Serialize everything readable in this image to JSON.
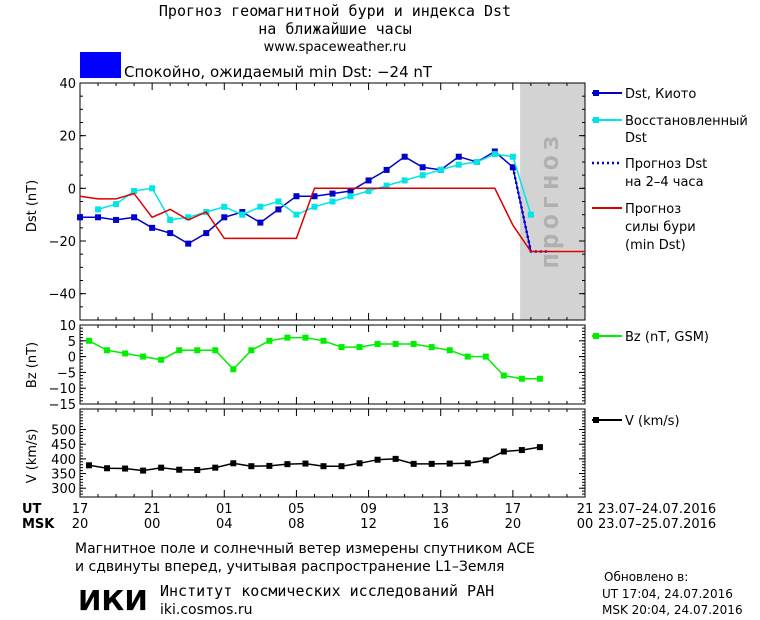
{
  "header": {
    "title_line1": "Прогноз геомагнитной бури и индекса Dst",
    "title_line2": "на ближайшие часы",
    "url": "www.spaceweather.ru"
  },
  "status": {
    "color": "#0000ff",
    "label": "Спокойно, ожидаемый min Dst: −24 nT"
  },
  "panels": {
    "dst": {
      "ylabel": "Dst (nT)",
      "ylim": [
        -50,
        40
      ],
      "ticks": [
        "40",
        "20",
        "0",
        "−20",
        "−40"
      ],
      "forecast_label": "прогноз"
    },
    "bz": {
      "ylabel": "Bz (nT)",
      "ylim": [
        -15,
        10
      ],
      "ticks": [
        "10",
        "5",
        "0",
        "−5",
        "−10",
        "−15"
      ]
    },
    "v": {
      "ylabel": "V (km/s)",
      "ylim": [
        270,
        570
      ],
      "ticks": [
        "500",
        "450",
        "400",
        "350",
        "300"
      ]
    }
  },
  "legend": {
    "dst_kyoto": "Dst, Киото",
    "dst_restored_1": "Восстановленный",
    "dst_restored_2": "Dst",
    "forecast_1": "Прогноз Dst",
    "forecast_2": "на 2–4 часа",
    "storm_1": "Прогноз",
    "storm_2": "силы бури",
    "storm_3": "(min Dst)",
    "bz": "Bz (nT, GSM)",
    "v": "V (km/s)"
  },
  "axis": {
    "ut_label": "UT",
    "msk_label": "MSK",
    "ut_ticks": [
      "17",
      "21",
      "01",
      "05",
      "09",
      "13",
      "17",
      "21"
    ],
    "msk_ticks": [
      "20",
      "00",
      "04",
      "08",
      "12",
      "16",
      "20",
      "00"
    ],
    "ut_range": "23.07–24.07.2016",
    "msk_range": "23.07–25.07.2016"
  },
  "footer": {
    "note_line1": "Магнитное поле и солнечный ветер измерены спутником ACE",
    "note_line2": "и сдвинуты вперед, учитывая распространение L1–Земля",
    "logo": "ИКИ",
    "institute": "Институт космических исследований РАН",
    "site": "iki.cosmos.ru",
    "updated_title": "Обновлено в:",
    "updated_ut": "UT  17:04, 24.07.2016",
    "updated_msk": "MSK 20:04, 24.07.2016"
  },
  "colors": {
    "dst_kyoto": "#0000cc",
    "dst_restored": "#00e5e5",
    "forecast": "#0000cc",
    "storm": "#dd0000",
    "bz": "#00ee00",
    "v": "#000000",
    "forecast_band": "#d3d3d3"
  },
  "chart_data": [
    {
      "type": "line",
      "x_unit": "hours from 17:00 UT 23.07.2016",
      "xlim": [
        0,
        28
      ],
      "ylim": [
        -50,
        40
      ],
      "series": [
        {
          "name": "Dst, Киото",
          "x": [
            0,
            1,
            2,
            3,
            4,
            5,
            6,
            7,
            8,
            9,
            10,
            11,
            12,
            13,
            14,
            15,
            16,
            17,
            18,
            19,
            20,
            21,
            22,
            23,
            24,
            25
          ],
          "y": [
            -11,
            -11,
            -12,
            -11,
            -15,
            -17,
            -21,
            -17,
            -11,
            -9,
            -13,
            -8,
            -3,
            -3,
            -2,
            -1,
            3,
            7,
            12,
            8,
            7,
            12,
            10,
            14,
            8,
            -24
          ]
        },
        {
          "name": "Восстановленный Dst",
          "x": [
            1,
            2,
            3,
            4,
            5,
            6,
            7,
            8,
            9,
            10,
            11,
            12,
            13,
            14,
            15,
            16,
            17,
            18,
            19,
            20,
            21,
            22,
            23,
            24,
            25
          ],
          "y": [
            -8,
            -6,
            -1,
            0,
            -12,
            -11,
            -9,
            -7,
            -10,
            -7,
            -5,
            -10,
            -7,
            -5,
            -3,
            -1,
            1,
            3,
            5,
            7,
            9,
            10,
            13,
            12,
            -10
          ]
        },
        {
          "name": "Прогноз Dst на 2–4 часа",
          "x": [
            24,
            25,
            26
          ],
          "y": [
            8,
            -24,
            -24
          ]
        },
        {
          "name": "Прогноз силы бури (min Dst)",
          "x": [
            0,
            1,
            2,
            3,
            4,
            5,
            6,
            7,
            8,
            9,
            10,
            11,
            12,
            13,
            14,
            15,
            16,
            17,
            18,
            19,
            20,
            21,
            22,
            23,
            24,
            25,
            26,
            27,
            28
          ],
          "y": [
            -3,
            -4,
            -4,
            -2,
            -11,
            -8,
            -12,
            -9,
            -19,
            -19,
            -19,
            -19,
            -19,
            0,
            0,
            0,
            0,
            0,
            0,
            0,
            0,
            0,
            0,
            0,
            -14,
            -24,
            -24,
            -24,
            -24
          ]
        }
      ]
    },
    {
      "type": "line",
      "x_unit": "hours from 17:00 UT 23.07.2016",
      "xlim": [
        0,
        28
      ],
      "ylim": [
        -15,
        10
      ],
      "series": [
        {
          "name": "Bz (nT, GSM)",
          "x": [
            0.5,
            1.5,
            2.5,
            3.5,
            4.5,
            5.5,
            6.5,
            7.5,
            8.5,
            9.5,
            10.5,
            11.5,
            12.5,
            13.5,
            14.5,
            15.5,
            16.5,
            17.5,
            18.5,
            19.5,
            20.5,
            21.5,
            22.5,
            23.5,
            24.5,
            25.5
          ],
          "y": [
            5,
            2,
            1,
            0,
            -1,
            2,
            2,
            2,
            -4,
            2,
            5,
            6,
            6,
            5,
            3,
            3,
            4,
            4,
            4,
            3,
            2,
            0,
            0,
            -6,
            -7,
            -7
          ]
        }
      ]
    },
    {
      "type": "line",
      "x_unit": "hours from 17:00 UT 23.07.2016",
      "xlim": [
        0,
        28
      ],
      "ylim": [
        270,
        570
      ],
      "series": [
        {
          "name": "V (km/s)",
          "x": [
            0.5,
            1.5,
            2.5,
            3.5,
            4.5,
            5.5,
            6.5,
            7.5,
            8.5,
            9.5,
            10.5,
            11.5,
            12.5,
            13.5,
            14.5,
            15.5,
            16.5,
            17.5,
            18.5,
            19.5,
            20.5,
            21.5,
            22.5,
            23.5,
            24.5,
            25.5
          ],
          "y": [
            378,
            368,
            367,
            360,
            370,
            363,
            362,
            370,
            385,
            375,
            376,
            382,
            384,
            375,
            375,
            385,
            397,
            400,
            383,
            383,
            384,
            385,
            395,
            425,
            430,
            440
          ]
        }
      ]
    }
  ]
}
